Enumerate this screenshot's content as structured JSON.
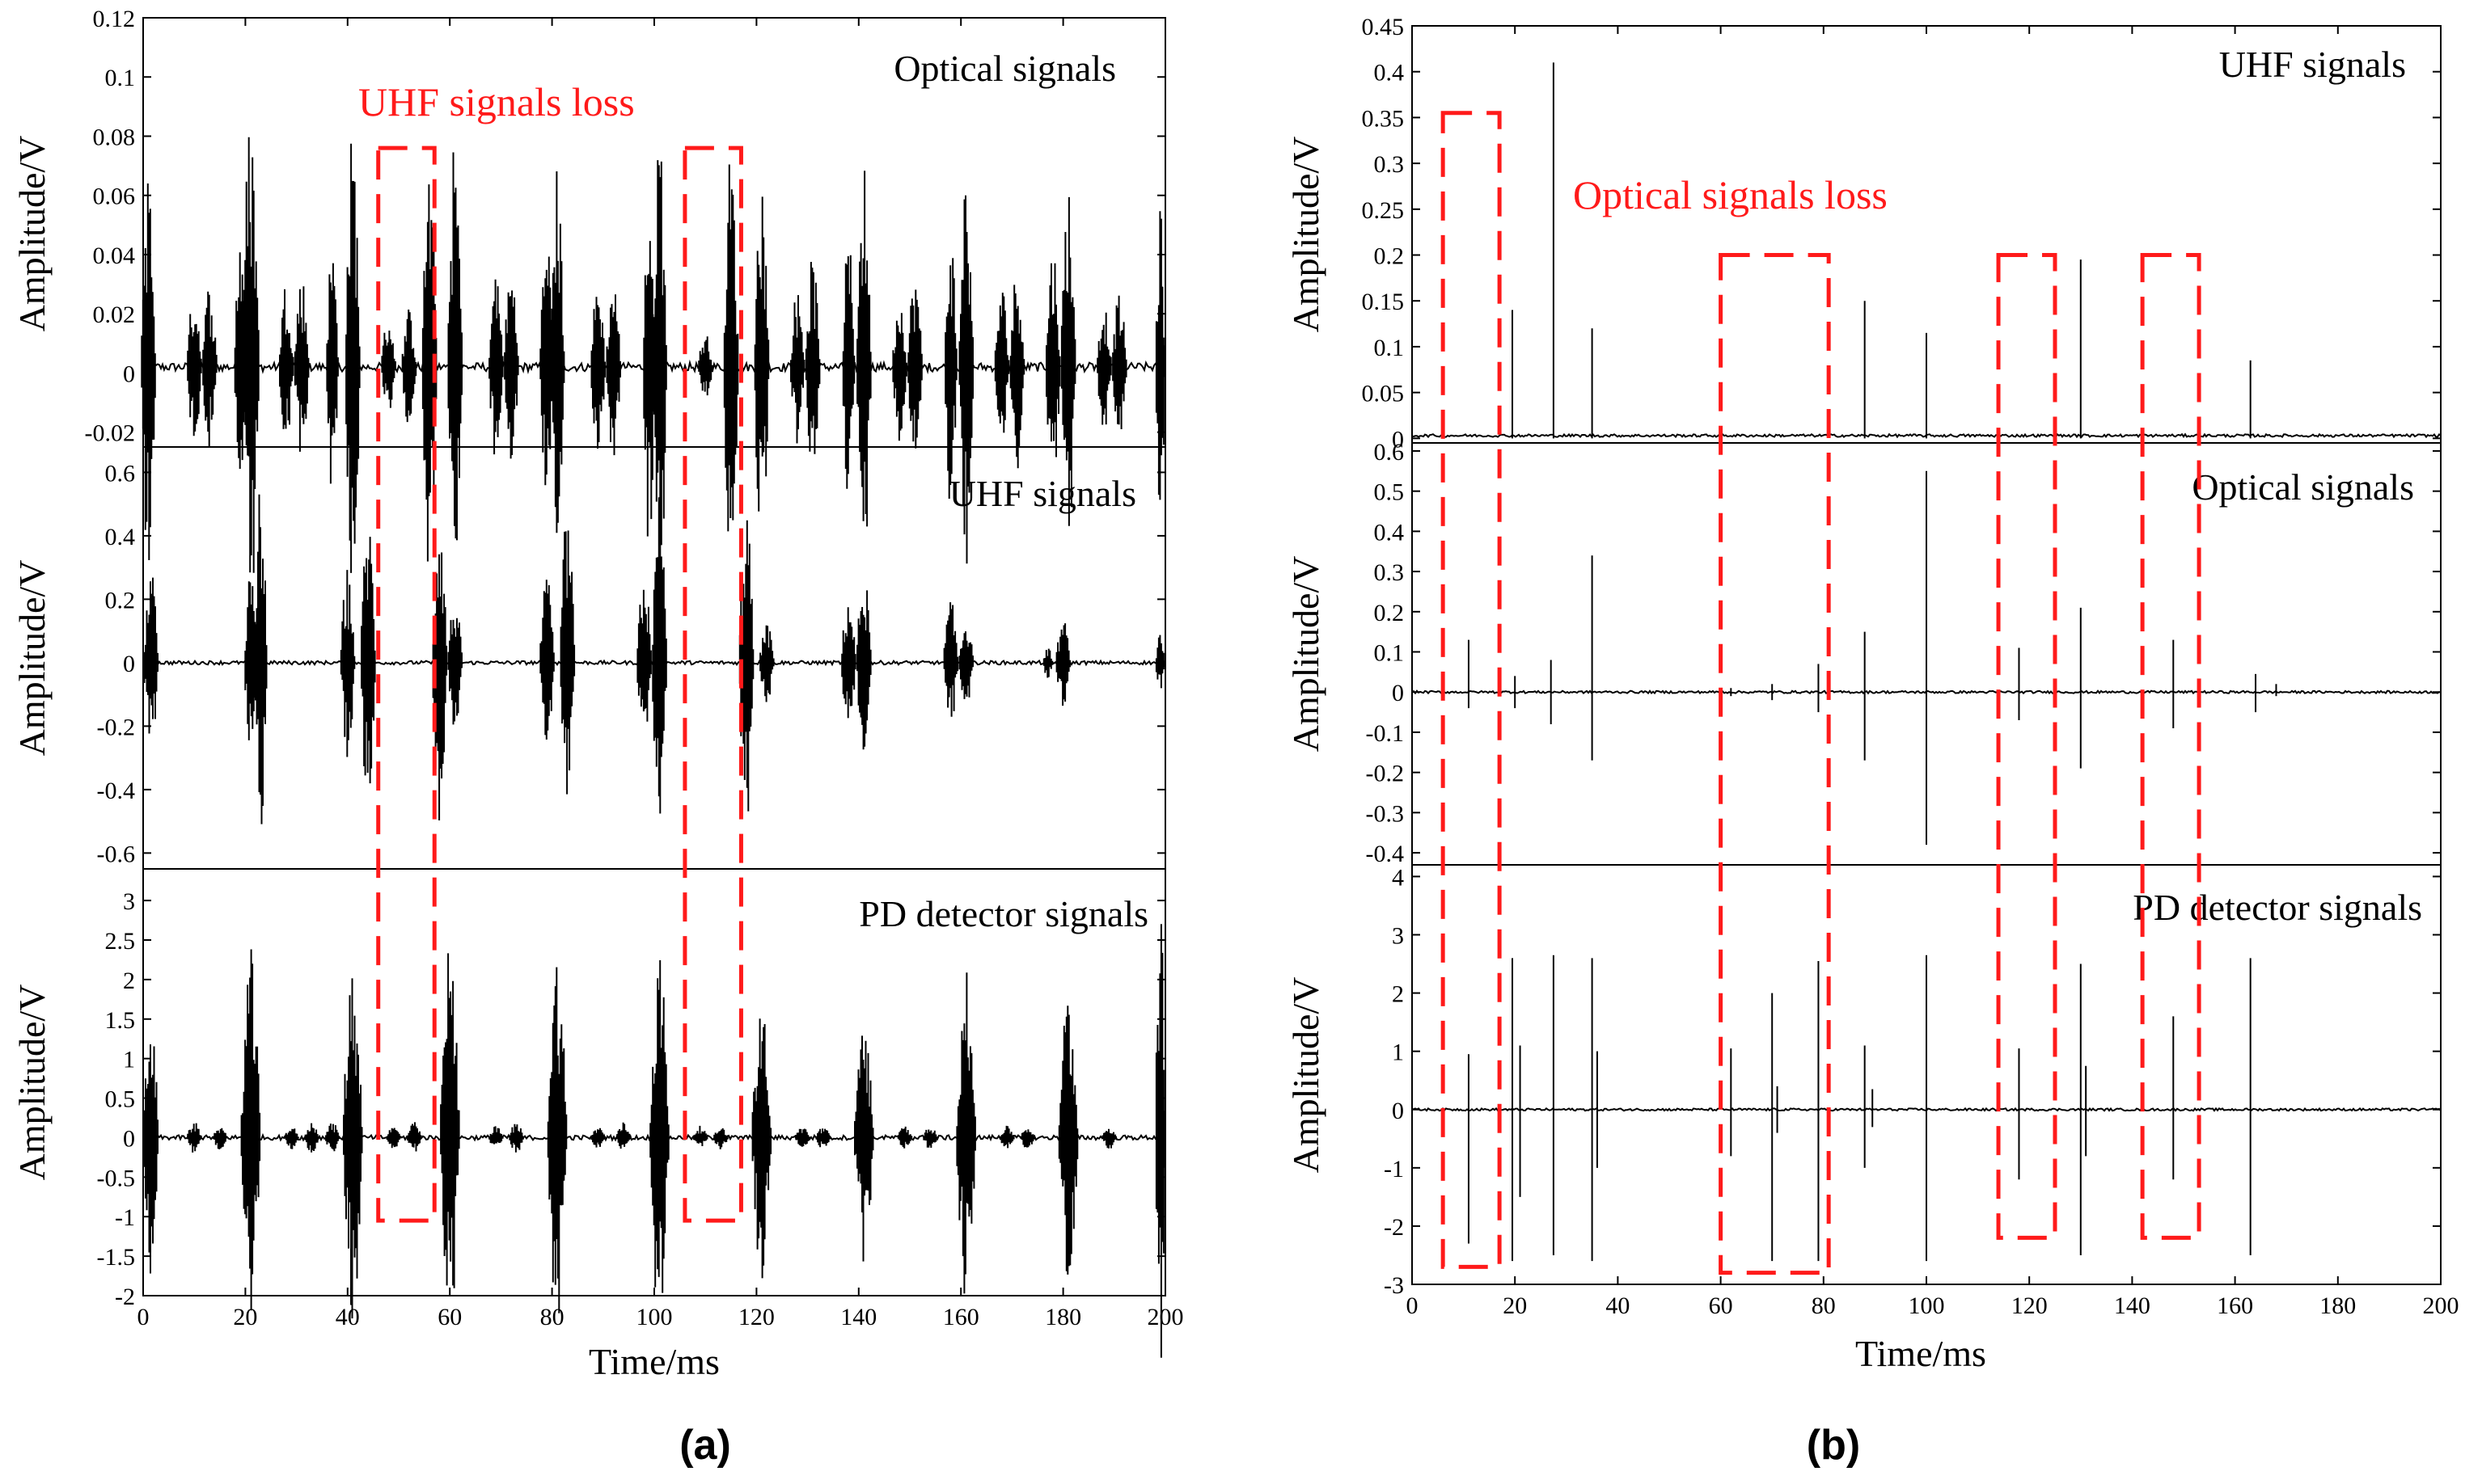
{
  "chart_data": [
    {
      "type": "line",
      "id": "a",
      "sublabel": "(a)",
      "xlabel": "Time/ms",
      "xlim": [
        0,
        200
      ],
      "xticks": [
        0,
        20,
        40,
        60,
        80,
        100,
        120,
        140,
        160,
        180,
        200
      ],
      "annotation": "UHF signals loss",
      "loss_windows_ms": [
        [
          46,
          57
        ],
        [
          106,
          117
        ]
      ],
      "loss_box_bottom_value": -1.05,
      "panels": [
        {
          "title": "Optical signals",
          "ylabel": "Amplitude/V",
          "ylim": [
            -0.025,
            0.12
          ],
          "yticks": [
            -0.02,
            0,
            0.02,
            0.04,
            0.06,
            0.08,
            0.1,
            0.12
          ],
          "ytick_labels": [
            "-0.02",
            "0",
            "0.02",
            "0.04",
            "0.06",
            "0.08",
            "0.1",
            "0.12"
          ],
          "baseline": 0.002,
          "noise": 0.0015,
          "bursts": [
            {
              "t": 1,
              "w": 3,
              "amp": 0.069
            },
            {
              "t": 10,
              "w": 3,
              "amp": 0.027
            },
            {
              "t": 13,
              "w": 3,
              "amp": 0.029
            },
            {
              "t": 19,
              "w": 2.5,
              "amp": 0.049
            },
            {
              "t": 21,
              "w": 3.5,
              "amp": 0.088
            },
            {
              "t": 28,
              "w": 3,
              "amp": 0.03
            },
            {
              "t": 31,
              "w": 3,
              "amp": 0.032
            },
            {
              "t": 37,
              "w": 2.5,
              "amp": 0.043
            },
            {
              "t": 41,
              "w": 3,
              "amp": 0.082
            },
            {
              "t": 48,
              "w": 3,
              "amp": 0.018
            },
            {
              "t": 52,
              "w": 3,
              "amp": 0.02
            },
            {
              "t": 56,
              "w": 3,
              "amp": 0.071
            },
            {
              "t": 61,
              "w": 3,
              "amp": 0.078
            },
            {
              "t": 69,
              "w": 3,
              "amp": 0.033
            },
            {
              "t": 72,
              "w": 3,
              "amp": 0.035
            },
            {
              "t": 79,
              "w": 3,
              "amp": 0.045
            },
            {
              "t": 81,
              "w": 3,
              "amp": 0.068
            },
            {
              "t": 89,
              "w": 3,
              "amp": 0.03
            },
            {
              "t": 92,
              "w": 3,
              "amp": 0.031
            },
            {
              "t": 99,
              "w": 2.5,
              "amp": 0.063
            },
            {
              "t": 101,
              "w": 3,
              "amp": 0.087
            },
            {
              "t": 110,
              "w": 3,
              "amp": 0.012
            },
            {
              "t": 115,
              "w": 3,
              "amp": 0.075
            },
            {
              "t": 121,
              "w": 3,
              "amp": 0.068
            },
            {
              "t": 128,
              "w": 3,
              "amp": 0.027
            },
            {
              "t": 131,
              "w": 3,
              "amp": 0.038
            },
            {
              "t": 138,
              "w": 2.5,
              "amp": 0.045
            },
            {
              "t": 141,
              "w": 3,
              "amp": 0.069
            },
            {
              "t": 148,
              "w": 3,
              "amp": 0.025
            },
            {
              "t": 151,
              "w": 3,
              "amp": 0.033
            },
            {
              "t": 158,
              "w": 2.5,
              "amp": 0.048
            },
            {
              "t": 161,
              "w": 3,
              "amp": 0.068
            },
            {
              "t": 168,
              "w": 3,
              "amp": 0.028
            },
            {
              "t": 171,
              "w": 3,
              "amp": 0.035
            },
            {
              "t": 178,
              "w": 3,
              "amp": 0.042
            },
            {
              "t": 181,
              "w": 3,
              "amp": 0.065
            },
            {
              "t": 188,
              "w": 3,
              "amp": 0.022
            },
            {
              "t": 191,
              "w": 3,
              "amp": 0.025
            },
            {
              "t": 199,
              "w": 2,
              "amp": 0.054
            }
          ]
        },
        {
          "title": "UHF signals",
          "ylabel": "Amplitude/V",
          "ylim": [
            -0.65,
            0.68
          ],
          "yticks": [
            -0.6,
            -0.4,
            -0.2,
            0,
            0.2,
            0.4,
            0.6
          ],
          "ytick_labels": [
            "-0.6",
            "-0.4",
            "-0.2",
            "0",
            "0.2",
            "0.4",
            "0.6"
          ],
          "baseline": 0,
          "noise": 0.006,
          "bursts": [
            {
              "t": 1.5,
              "w": 3,
              "amp": 0.3
            },
            {
              "t": 21,
              "w": 2.5,
              "amp": 0.3
            },
            {
              "t": 23,
              "w": 2.5,
              "amp": 0.6
            },
            {
              "t": 40,
              "w": 3,
              "amp": 0.3
            },
            {
              "t": 44,
              "w": 3,
              "amp": 0.49
            },
            {
              "t": 58,
              "w": 3,
              "amp": 0.5
            },
            {
              "t": 61,
              "w": 3,
              "amp": 0.21
            },
            {
              "t": 79,
              "w": 3,
              "amp": 0.27
            },
            {
              "t": 83,
              "w": 3,
              "amp": 0.5
            },
            {
              "t": 98,
              "w": 3,
              "amp": 0.3
            },
            {
              "t": 101,
              "w": 3,
              "amp": 0.55
            },
            {
              "t": 118,
              "w": 3,
              "amp": 0.52
            },
            {
              "t": 122,
              "w": 3,
              "amp": 0.13
            },
            {
              "t": 138,
              "w": 3,
              "amp": 0.22
            },
            {
              "t": 141,
              "w": 3,
              "amp": 0.3
            },
            {
              "t": 158,
              "w": 3,
              "amp": 0.2
            },
            {
              "t": 161,
              "w": 3,
              "amp": 0.15
            },
            {
              "t": 177,
              "w": 2,
              "amp": 0.05
            },
            {
              "t": 180,
              "w": 3,
              "amp": 0.14
            },
            {
              "t": 199,
              "w": 2,
              "amp": 0.09
            }
          ]
        },
        {
          "title": "PD detector signals",
          "ylabel": "Amplitude/V",
          "ylim": [
            -2,
            3.4
          ],
          "yticks": [
            -2,
            -1.5,
            -1,
            -0.5,
            0,
            0.5,
            1,
            1.5,
            2,
            2.5,
            3
          ],
          "ytick_labels": [
            "-2",
            "-1.5",
            "-1",
            "-0.5",
            "0",
            "0.5",
            "1",
            "1.5",
            "2",
            "2.5",
            "3"
          ],
          "baseline": 0,
          "noise": 0.03,
          "bursts": [
            {
              "t": 1.5,
              "w": 3,
              "amp": 1.8
            },
            {
              "t": 10,
              "w": 3,
              "amp": 0.2
            },
            {
              "t": 15,
              "w": 3,
              "amp": 0.15
            },
            {
              "t": 21,
              "w": 4,
              "amp": 2.4
            },
            {
              "t": 29,
              "w": 3,
              "amp": 0.15
            },
            {
              "t": 33,
              "w": 3,
              "amp": 0.2
            },
            {
              "t": 37,
              "w": 3,
              "amp": 0.2
            },
            {
              "t": 41,
              "w": 4,
              "amp": 2.3
            },
            {
              "t": 49,
              "w": 3,
              "amp": 0.15
            },
            {
              "t": 53,
              "w": 3,
              "amp": 0.2
            },
            {
              "t": 60,
              "w": 4,
              "amp": 2.5
            },
            {
              "t": 69,
              "w": 3,
              "amp": 0.15
            },
            {
              "t": 73,
              "w": 3,
              "amp": 0.2
            },
            {
              "t": 81,
              "w": 4,
              "amp": 2.4
            },
            {
              "t": 89,
              "w": 3,
              "amp": 0.15
            },
            {
              "t": 94,
              "w": 3,
              "amp": 0.2
            },
            {
              "t": 101,
              "w": 4,
              "amp": 2.4
            },
            {
              "t": 109,
              "w": 3,
              "amp": 0.15
            },
            {
              "t": 113,
              "w": 3,
              "amp": 0.15
            },
            {
              "t": 121,
              "w": 4,
              "amp": 1.8
            },
            {
              "t": 129,
              "w": 3,
              "amp": 0.15
            },
            {
              "t": 133,
              "w": 3,
              "amp": 0.15
            },
            {
              "t": 141,
              "w": 4,
              "amp": 1.6
            },
            {
              "t": 149,
              "w": 3,
              "amp": 0.15
            },
            {
              "t": 154,
              "w": 3,
              "amp": 0.15
            },
            {
              "t": 161,
              "w": 4,
              "amp": 2.1
            },
            {
              "t": 169,
              "w": 3,
              "amp": 0.15
            },
            {
              "t": 173,
              "w": 3,
              "amp": 0.15
            },
            {
              "t": 181,
              "w": 4,
              "amp": 1.9
            },
            {
              "t": 189,
              "w": 3,
              "amp": 0.15
            },
            {
              "t": 199,
              "w": 2,
              "amp": 3.0
            }
          ]
        }
      ]
    },
    {
      "type": "line",
      "id": "b",
      "sublabel": "(b)",
      "xlabel": "Time/ms",
      "xlim": [
        0,
        200
      ],
      "xticks": [
        0,
        20,
        40,
        60,
        80,
        100,
        120,
        140,
        160,
        180,
        200
      ],
      "annotation": "Optical signals loss",
      "loss_windows": [
        {
          "x": [
            6,
            17
          ],
          "top": 0.355,
          "bottom": -2.7
        },
        {
          "x": [
            60,
            81
          ],
          "top": 0.2,
          "bottom": -2.8
        },
        {
          "x": [
            114,
            125
          ],
          "top": 0.2,
          "bottom": -2.2
        },
        {
          "x": [
            142,
            153
          ],
          "top": 0.2,
          "bottom": -2.2
        }
      ],
      "panels": [
        {
          "title": "UHF signals",
          "ylabel": "Amplitude/V",
          "ylim": [
            -0.005,
            0.45
          ],
          "yticks": [
            0,
            0.05,
            0.1,
            0.15,
            0.2,
            0.25,
            0.3,
            0.35,
            0.4,
            0.45
          ],
          "ytick_labels": [
            "0",
            "0.05",
            "0.1",
            "0.15",
            "0.2",
            "0.25",
            "0.3",
            "0.35",
            "0.4",
            "0.45"
          ],
          "baseline": 0.003,
          "noise": 0.0015,
          "spikes": [
            {
              "t": 19.5,
              "pos": 0.14,
              "neg": 0
            },
            {
              "t": 27.5,
              "pos": 0.41,
              "neg": 0
            },
            {
              "t": 35,
              "pos": 0.12,
              "neg": 0
            },
            {
              "t": 88,
              "pos": 0.15,
              "neg": 0
            },
            {
              "t": 100,
              "pos": 0.115,
              "neg": 0
            },
            {
              "t": 130,
              "pos": 0.195,
              "neg": 0
            },
            {
              "t": 163,
              "pos": 0.085,
              "neg": 0
            }
          ]
        },
        {
          "title": "Optical signals",
          "ylabel": "Amplitude/V",
          "ylim": [
            -0.43,
            0.62
          ],
          "yticks": [
            -0.4,
            -0.3,
            -0.2,
            -0.1,
            0,
            0.1,
            0.2,
            0.3,
            0.4,
            0.5,
            0.6
          ],
          "ytick_labels": [
            "-0.4",
            "-0.3",
            "-0.2",
            "-0.1",
            "0",
            "0.1",
            "0.2",
            "0.3",
            "0.4",
            "0.5",
            "0.6"
          ],
          "baseline": 0,
          "noise": 0.003,
          "spikes": [
            {
              "t": 11,
              "pos": 0.13,
              "neg": -0.04
            },
            {
              "t": 20,
              "pos": 0.04,
              "neg": -0.04
            },
            {
              "t": 27,
              "pos": 0.08,
              "neg": -0.08
            },
            {
              "t": 35,
              "pos": 0.34,
              "neg": -0.17
            },
            {
              "t": 62,
              "pos": 0.01,
              "neg": -0.01
            },
            {
              "t": 70,
              "pos": 0.02,
              "neg": -0.02
            },
            {
              "t": 79,
              "pos": 0.07,
              "neg": -0.05
            },
            {
              "t": 88,
              "pos": 0.15,
              "neg": -0.17
            },
            {
              "t": 100,
              "pos": 0.55,
              "neg": -0.38
            },
            {
              "t": 118,
              "pos": 0.11,
              "neg": -0.07
            },
            {
              "t": 130,
              "pos": 0.21,
              "neg": -0.19
            },
            {
              "t": 148,
              "pos": 0.13,
              "neg": -0.09
            },
            {
              "t": 164,
              "pos": 0.045,
              "neg": -0.05
            },
            {
              "t": 168,
              "pos": 0.02,
              "neg": -0.01
            }
          ]
        },
        {
          "title": "PD detector signals",
          "ylabel": "Amplitude/V",
          "ylim": [
            -3,
            4.2
          ],
          "yticks": [
            -3,
            -2,
            -1,
            0,
            1,
            2,
            3,
            4
          ],
          "ytick_labels": [
            "-3",
            "-2",
            "-1",
            "0",
            "1",
            "2",
            "3",
            "4"
          ],
          "baseline": 0,
          "noise": 0.02,
          "spikes": [
            {
              "t": 11,
              "pos": 0.95,
              "neg": -2.3
            },
            {
              "t": 19.5,
              "pos": 2.6,
              "neg": -2.6
            },
            {
              "t": 21,
              "pos": 1.1,
              "neg": -1.5
            },
            {
              "t": 27.5,
              "pos": 2.65,
              "neg": -2.5
            },
            {
              "t": 35,
              "pos": 2.6,
              "neg": -2.6
            },
            {
              "t": 36,
              "pos": 1.0,
              "neg": -1.0
            },
            {
              "t": 62,
              "pos": 1.05,
              "neg": -0.8
            },
            {
              "t": 70,
              "pos": 2.0,
              "neg": -2.6
            },
            {
              "t": 71,
              "pos": 0.4,
              "neg": -0.4
            },
            {
              "t": 79,
              "pos": 2.55,
              "neg": -2.6
            },
            {
              "t": 88,
              "pos": 1.1,
              "neg": -1.0
            },
            {
              "t": 89.5,
              "pos": 0.35,
              "neg": -0.3
            },
            {
              "t": 100,
              "pos": 2.65,
              "neg": -2.6
            },
            {
              "t": 118,
              "pos": 1.05,
              "neg": -1.2
            },
            {
              "t": 130,
              "pos": 2.5,
              "neg": -2.5
            },
            {
              "t": 131,
              "pos": 0.75,
              "neg": -0.8
            },
            {
              "t": 148,
              "pos": 1.6,
              "neg": -1.2
            },
            {
              "t": 163,
              "pos": 2.6,
              "neg": -2.5
            }
          ]
        }
      ]
    }
  ]
}
